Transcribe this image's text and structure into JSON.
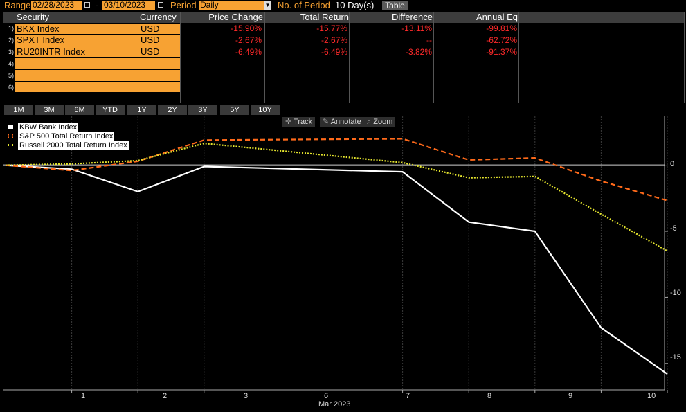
{
  "topbar": {
    "range_label": "Range",
    "start_date": "02/28/2023",
    "dash": "-",
    "end_date": "03/10/2023",
    "period_label": "Period",
    "period_value": "Daily",
    "num_periods_label": "No. of Period",
    "num_periods_value": "10 Day(s)",
    "table_button": "Table"
  },
  "table": {
    "headers": [
      "Security",
      "Currency",
      "Price Change",
      "Total Return",
      "Difference",
      "Annual Eq"
    ],
    "row_numbers": [
      "1)",
      "2)",
      "3)",
      "4)",
      "5)",
      "6)"
    ],
    "rows": [
      {
        "security": "BKX Index",
        "currency": "USD",
        "price_change": "-15.90%",
        "total_return": "-15.77%",
        "difference": "-13.11%",
        "annual_eq": "-99.81%"
      },
      {
        "security": "SPXT Index",
        "currency": "USD",
        "price_change": "-2.67%",
        "total_return": "-2.67%",
        "difference": "--",
        "annual_eq": "-62.72%"
      },
      {
        "security": "RU20INTR Index",
        "currency": "USD",
        "price_change": "-6.49%",
        "total_return": "-6.49%",
        "difference": "-3.82%",
        "annual_eq": "-91.37%"
      }
    ]
  },
  "period_buttons": [
    "1M",
    "3M",
    "6M",
    "YTD",
    "1Y",
    "2Y",
    "3Y",
    "5Y",
    "10Y"
  ],
  "chart_tools": [
    "Track",
    "Annotate",
    "Zoom"
  ],
  "chart_tool_icons": [
    "crosshair-icon",
    "pencil-icon",
    "magnifier-icon"
  ],
  "colors": {
    "accent_orange": "#f7a233",
    "negative_red": "#ff2a2a",
    "series_kbw": "#ffffff",
    "series_sp500": "#ff6a1a",
    "series_r2000": "#e6e62e"
  },
  "chart_data": {
    "type": "line",
    "x": [
      0,
      1,
      2,
      3,
      6,
      7,
      8,
      9,
      10
    ],
    "x_tick_labels": [
      "1",
      "2",
      "3",
      "6",
      "7",
      "8",
      "9",
      "10"
    ],
    "xlabel": "Mar 2023",
    "ylim": [
      -17,
      3.7
    ],
    "y_ticks": [
      0,
      -5,
      -10,
      -15
    ],
    "y_tick_labels": [
      "0",
      "-5",
      "-10",
      "-15"
    ],
    "series": [
      {
        "name": "KBW Bank Index",
        "color": "#ffffff",
        "style": "solid",
        "values": [
          0,
          -0.3,
          -2.0,
          -0.1,
          -0.5,
          -4.3,
          -5.0,
          -12.3,
          -15.8
        ]
      },
      {
        "name": "S&P 500 Total Return Index",
        "color": "#ff6a1a",
        "style": "dashed",
        "values": [
          0,
          -0.4,
          0.3,
          1.9,
          2.0,
          0.4,
          0.55,
          -1.2,
          -2.67
        ]
      },
      {
        "name": "Russell 2000 Total Return Index",
        "color": "#e6e62e",
        "style": "dotted",
        "values": [
          0,
          0.1,
          0.35,
          1.65,
          0.2,
          -0.95,
          -0.85,
          -3.7,
          -6.49
        ]
      }
    ],
    "legend_position": "top-left",
    "grid": "vertical"
  }
}
